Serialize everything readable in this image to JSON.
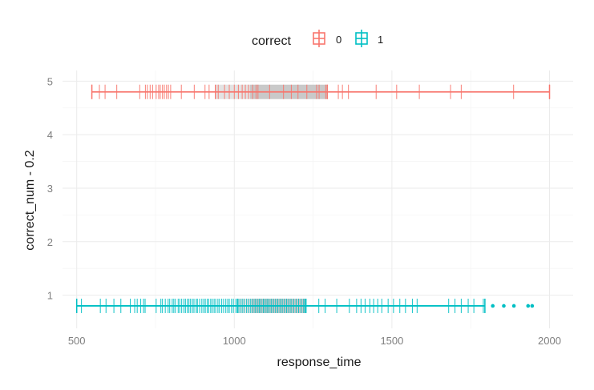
{
  "chart_data": {
    "type": "boxplot-rug",
    "xlabel": "response_time",
    "ylabel": "correct_num - 0.2",
    "xlim": [
      455,
      2075
    ],
    "ylim": [
      0.38,
      5.2
    ],
    "x_ticks": [
      500,
      1000,
      1500,
      2000
    ],
    "y_ticks": [
      1,
      2,
      3,
      4,
      5
    ],
    "grid": true,
    "legend": {
      "title": "correct",
      "position": "top",
      "entries": [
        "0",
        "1"
      ]
    },
    "colors": {
      "0": "#f8766d",
      "1": "#00bfc4"
    },
    "series": [
      {
        "name": "0",
        "y": 4.8,
        "box": {
          "whisker_low": 548,
          "q1": 940,
          "median": 1050,
          "q3": 1295,
          "whisker_high": 2000
        },
        "outliers": [],
        "rug": [
          548,
          572,
          590,
          627,
          700,
          718,
          724,
          733,
          741,
          752,
          760,
          765,
          772,
          778,
          785,
          791,
          798,
          832,
          873,
          907,
          920,
          949,
          969,
          984,
          1000,
          1013,
          1025,
          1035,
          1045,
          1058,
          1069,
          1075,
          1112,
          1156,
          1181,
          1202,
          1230,
          1261,
          1269,
          1290,
          1295,
          1330,
          1343,
          1362,
          1450,
          1515,
          1587,
          1686,
          1720,
          1886,
          2000
        ]
      },
      {
        "name": "1",
        "y": 0.8,
        "box": {
          "whisker_low": 500,
          "q1": 1010,
          "median": 1055,
          "q3": 1225,
          "whisker_high": 1795
        },
        "outliers": [
          1820,
          1855,
          1887,
          1932,
          1945
        ],
        "rug": [
          500,
          515,
          575,
          593,
          618,
          640,
          670,
          684,
          692,
          703,
          712,
          717,
          752,
          767,
          772,
          781,
          790,
          795,
          803,
          808,
          813,
          822,
          827,
          833,
          840,
          845,
          851,
          856,
          861,
          867,
          872,
          879,
          883,
          890,
          897,
          903,
          908,
          914,
          919,
          925,
          930,
          936,
          941,
          948,
          953,
          960,
          966,
          973,
          979,
          984,
          991,
          997,
          1005,
          1012,
          1018,
          1025,
          1031,
          1039,
          1046,
          1052,
          1059,
          1066,
          1073,
          1079,
          1085,
          1092,
          1098,
          1104,
          1110,
          1117,
          1124,
          1131,
          1138,
          1145,
          1152,
          1159,
          1166,
          1173,
          1180,
          1188,
          1196,
          1204,
          1212,
          1220,
          1228,
          1268,
          1288,
          1325,
          1365,
          1388,
          1402,
          1415,
          1430,
          1442,
          1455,
          1468,
          1488,
          1505,
          1525,
          1543,
          1565,
          1580,
          1680,
          1700,
          1720,
          1742,
          1760,
          1790
        ]
      }
    ]
  }
}
